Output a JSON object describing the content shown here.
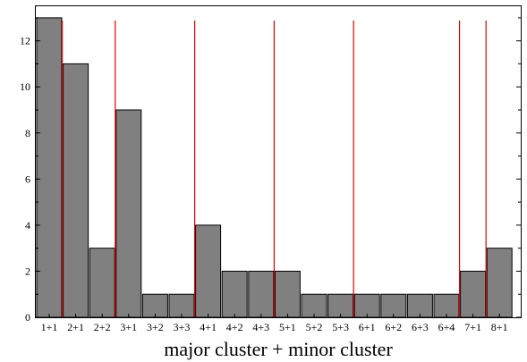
{
  "chart_data": {
    "type": "bar",
    "categories": [
      "1+1",
      "2+1",
      "2+2",
      "3+1",
      "3+2",
      "3+3",
      "4+1",
      "4+2",
      "4+3",
      "5+1",
      "5+2",
      "5+3",
      "6+1",
      "6+2",
      "6+3",
      "6+4",
      "7+1",
      "8+1"
    ],
    "values": [
      13,
      11,
      3,
      9,
      1,
      1,
      4,
      2,
      2,
      2,
      1,
      1,
      1,
      1,
      1,
      1,
      2,
      3
    ],
    "xlabel": "major cluster + minor cluster",
    "ylabel": "",
    "ylim": [
      0,
      13.5
    ],
    "yticks": [
      0,
      2,
      4,
      6,
      8,
      10,
      12
    ],
    "separator_before_categories": [
      "2+1",
      "3+1",
      "4+1",
      "5+1",
      "6+1",
      "7+1",
      "8+1"
    ],
    "grid": false,
    "colors": {
      "bar": "#808080",
      "bar_edge": "#000000",
      "separator": "#e00000"
    }
  }
}
